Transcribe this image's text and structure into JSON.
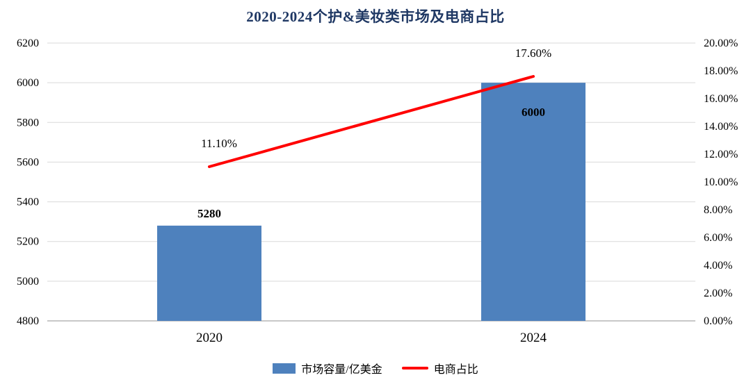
{
  "chart_data": {
    "type": "bar+line",
    "title": "2020-2024个护&美妆类市场及电商占比",
    "categories": [
      "2020",
      "2024"
    ],
    "series": [
      {
        "name": "市场容量/亿美金",
        "type": "bar",
        "axis": "left",
        "values": [
          5280,
          6000
        ],
        "data_labels": [
          "5280",
          "6000"
        ],
        "label_positions": [
          "above",
          "inside"
        ],
        "color": "#4e81bd"
      },
      {
        "name": "电商占比",
        "type": "line",
        "axis": "right",
        "values": [
          0.111,
          0.176
        ],
        "data_labels": [
          "11.10%",
          "17.60%"
        ],
        "color": "#ff0000"
      }
    ],
    "left_axis": {
      "min": 4800,
      "max": 6200,
      "step": 200,
      "tick_labels": [
        "4800",
        "5000",
        "5200",
        "5400",
        "5600",
        "5800",
        "6000",
        "6200"
      ]
    },
    "right_axis": {
      "min": 0,
      "max": 0.2,
      "step": 0.02,
      "tick_labels": [
        "0.00%",
        "2.00%",
        "4.00%",
        "6.00%",
        "8.00%",
        "10.00%",
        "12.00%",
        "14.00%",
        "16.00%",
        "18.00%",
        "20.00%"
      ]
    },
    "legend": {
      "position": "bottom",
      "items": [
        {
          "label": "市场容量/亿美金",
          "swatch": "bar",
          "color": "#4e81bd"
        },
        {
          "label": "电商占比",
          "swatch": "line",
          "color": "#ff0000"
        }
      ]
    },
    "grid": true,
    "colors": {
      "grid": "#d9d9d9",
      "axis_line": "#a6a6a6",
      "text": "#000000",
      "title": "#1f3864"
    },
    "background": "#ffffff"
  }
}
